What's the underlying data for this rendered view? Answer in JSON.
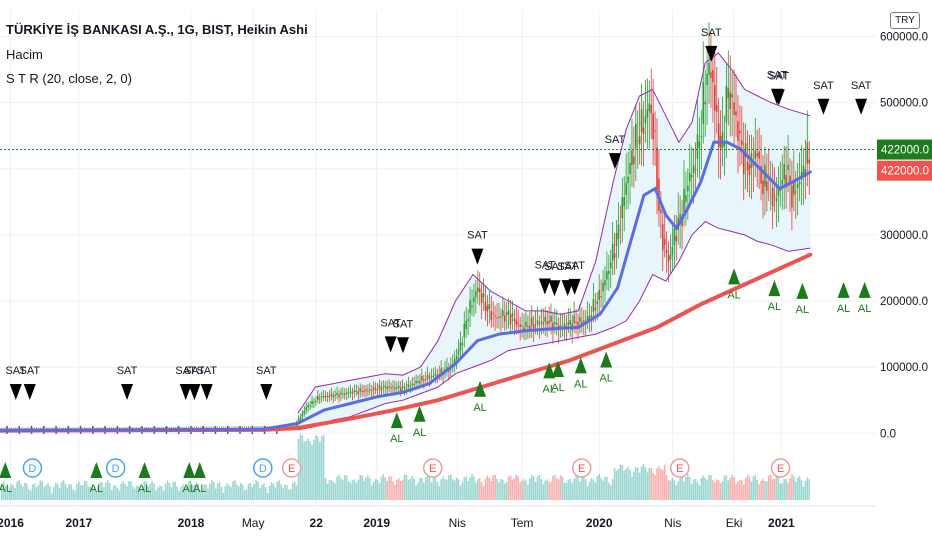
{
  "header": {
    "title": "TÜRKİYE İŞ BANKASI A.Ş., 1G, BIST, Heikin Ashi",
    "volume_label": "Hacim",
    "indicator_label": "S T R  (20, close, 2, 0)",
    "currency": "TRY"
  },
  "colors": {
    "bull": "#26a69a",
    "bull_strong": "#2e9c2e",
    "bear": "#e53935",
    "ma_blue": "#5b6ee1",
    "ma_red": "#ef5350",
    "band": "#9c27b0",
    "band_fill": "#e8f6fb",
    "sell": "#000000",
    "buy": "#1b7a1b",
    "price_green": "#1e7b1e",
    "price_red": "#ef5350"
  },
  "chart_data": {
    "type": "candlestick",
    "y_ticks": [
      "600000.0",
      "500000.0",
      "400000.0",
      "300000.0",
      "200000.0",
      "100000.0",
      "0.0"
    ],
    "y_tick_values": [
      600000,
      500000,
      400000,
      300000,
      200000,
      100000,
      0
    ],
    "ylim": [
      -110000,
      640000
    ],
    "x_range": [
      0,
      1000
    ],
    "x_ticks": [
      {
        "label": "2016",
        "x": 12
      },
      {
        "label": "2017",
        "x": 90
      },
      {
        "label": "2018",
        "x": 218
      },
      {
        "label": "May",
        "x": 289
      },
      {
        "label": "22",
        "x": 361
      },
      {
        "label": "2019",
        "x": 430
      },
      {
        "label": "Nis",
        "x": 522
      },
      {
        "label": "Tem",
        "x": 596
      },
      {
        "label": "2020",
        "x": 684
      },
      {
        "label": "Nis",
        "x": 768
      },
      {
        "label": "Eki",
        "x": 838
      },
      {
        "label": "2021",
        "x": 892
      }
    ],
    "last_price_labels": {
      "upper": "422000.0",
      "lower": "422000.0"
    },
    "last_price_values": {
      "upper": 429000,
      "lower": 397000
    },
    "price_points": [
      [
        0,
        5000
      ],
      [
        100,
        5000
      ],
      [
        200,
        6000
      ],
      [
        300,
        7000
      ],
      [
        335,
        8000
      ],
      [
        350,
        40000
      ],
      [
        365,
        55000
      ],
      [
        385,
        58000
      ],
      [
        400,
        62000
      ],
      [
        420,
        65000
      ],
      [
        440,
        70000
      ],
      [
        460,
        68000
      ],
      [
        480,
        80000
      ],
      [
        500,
        90000
      ],
      [
        515,
        100000
      ],
      [
        525,
        130000
      ],
      [
        535,
        185000
      ],
      [
        545,
        220000
      ],
      [
        555,
        190000
      ],
      [
        565,
        175000
      ],
      [
        580,
        180000
      ],
      [
        595,
        160000
      ],
      [
        610,
        165000
      ],
      [
        625,
        170000
      ],
      [
        640,
        160000
      ],
      [
        655,
        168000
      ],
      [
        670,
        170000
      ],
      [
        685,
        210000
      ],
      [
        695,
        250000
      ],
      [
        705,
        300000
      ],
      [
        715,
        380000
      ],
      [
        725,
        440000
      ],
      [
        735,
        470000
      ],
      [
        742,
        500000
      ],
      [
        748,
        430000
      ],
      [
        752,
        340000
      ],
      [
        758,
        280000
      ],
      [
        764,
        260000
      ],
      [
        770,
        300000
      ],
      [
        778,
        330000
      ],
      [
        785,
        380000
      ],
      [
        792,
        400000
      ],
      [
        800,
        460000
      ],
      [
        806,
        540000
      ],
      [
        812,
        550000
      ],
      [
        818,
        470000
      ],
      [
        824,
        420000
      ],
      [
        830,
        520000
      ],
      [
        836,
        500000
      ],
      [
        842,
        460000
      ],
      [
        848,
        420000
      ],
      [
        856,
        400000
      ],
      [
        864,
        430000
      ],
      [
        870,
        370000
      ],
      [
        876,
        390000
      ],
      [
        884,
        350000
      ],
      [
        892,
        380000
      ],
      [
        898,
        400000
      ],
      [
        904,
        360000
      ],
      [
        912,
        380000
      ],
      [
        920,
        410000
      ],
      [
        925,
        422000
      ]
    ],
    "ma_blue_points": [
      [
        0,
        4000
      ],
      [
        300,
        6000
      ],
      [
        340,
        15000
      ],
      [
        370,
        35000
      ],
      [
        400,
        45000
      ],
      [
        430,
        55000
      ],
      [
        460,
        62000
      ],
      [
        490,
        75000
      ],
      [
        520,
        105000
      ],
      [
        545,
        140000
      ],
      [
        570,
        150000
      ],
      [
        600,
        155000
      ],
      [
        630,
        158000
      ],
      [
        660,
        160000
      ],
      [
        685,
        180000
      ],
      [
        705,
        220000
      ],
      [
        720,
        290000
      ],
      [
        735,
        360000
      ],
      [
        748,
        370000
      ],
      [
        760,
        330000
      ],
      [
        772,
        310000
      ],
      [
        785,
        340000
      ],
      [
        800,
        380000
      ],
      [
        815,
        440000
      ],
      [
        830,
        440000
      ],
      [
        845,
        430000
      ],
      [
        860,
        410000
      ],
      [
        875,
        390000
      ],
      [
        890,
        370000
      ],
      [
        905,
        380000
      ],
      [
        925,
        395000
      ]
    ],
    "ma_red_points": [
      [
        0,
        4000
      ],
      [
        300,
        5000
      ],
      [
        340,
        8000
      ],
      [
        400,
        22000
      ],
      [
        450,
        35000
      ],
      [
        500,
        50000
      ],
      [
        550,
        70000
      ],
      [
        600,
        90000
      ],
      [
        650,
        110000
      ],
      [
        700,
        135000
      ],
      [
        750,
        160000
      ],
      [
        800,
        195000
      ],
      [
        850,
        225000
      ],
      [
        900,
        255000
      ],
      [
        925,
        270000
      ]
    ],
    "band_upper": [
      [
        340,
        30000
      ],
      [
        360,
        70000
      ],
      [
        380,
        75000
      ],
      [
        400,
        80000
      ],
      [
        420,
        85000
      ],
      [
        440,
        90000
      ],
      [
        460,
        88000
      ],
      [
        480,
        100000
      ],
      [
        500,
        140000
      ],
      [
        520,
        200000
      ],
      [
        540,
        240000
      ],
      [
        560,
        215000
      ],
      [
        580,
        200000
      ],
      [
        600,
        185000
      ],
      [
        620,
        185000
      ],
      [
        640,
        180000
      ],
      [
        660,
        185000
      ],
      [
        680,
        260000
      ],
      [
        700,
        380000
      ],
      [
        715,
        460000
      ],
      [
        730,
        510000
      ],
      [
        745,
        520000
      ],
      [
        760,
        480000
      ],
      [
        775,
        440000
      ],
      [
        790,
        470000
      ],
      [
        805,
        560000
      ],
      [
        820,
        575000
      ],
      [
        835,
        550000
      ],
      [
        850,
        520000
      ],
      [
        865,
        510000
      ],
      [
        880,
        500000
      ],
      [
        900,
        490000
      ],
      [
        925,
        480000
      ]
    ],
    "band_lower": [
      [
        340,
        5000
      ],
      [
        360,
        10000
      ],
      [
        380,
        20000
      ],
      [
        400,
        25000
      ],
      [
        420,
        35000
      ],
      [
        440,
        45000
      ],
      [
        460,
        50000
      ],
      [
        480,
        60000
      ],
      [
        500,
        70000
      ],
      [
        520,
        90000
      ],
      [
        540,
        100000
      ],
      [
        560,
        110000
      ],
      [
        580,
        125000
      ],
      [
        600,
        130000
      ],
      [
        620,
        135000
      ],
      [
        640,
        140000
      ],
      [
        660,
        145000
      ],
      [
        680,
        150000
      ],
      [
        700,
        160000
      ],
      [
        715,
        170000
      ],
      [
        730,
        200000
      ],
      [
        745,
        240000
      ],
      [
        760,
        230000
      ],
      [
        775,
        260000
      ],
      [
        790,
        300000
      ],
      [
        805,
        320000
      ],
      [
        820,
        310000
      ],
      [
        835,
        305000
      ],
      [
        850,
        300000
      ],
      [
        865,
        290000
      ],
      [
        880,
        285000
      ],
      [
        900,
        275000
      ],
      [
        925,
        280000
      ]
    ],
    "sell_signals": [
      {
        "x": 18,
        "label": "SAT"
      },
      {
        "x": 34,
        "label": "SAT"
      },
      {
        "x": 145,
        "label": "SAT"
      },
      {
        "x": 212,
        "label": "SAT"
      },
      {
        "x": 222,
        "label": "SAT"
      },
      {
        "x": 236,
        "label": "SAT"
      },
      {
        "x": 304,
        "label": "SAT"
      },
      {
        "x": 446,
        "label": "SAT"
      },
      {
        "x": 460,
        "label": "SAT"
      },
      {
        "x": 545,
        "label": "SAT"
      },
      {
        "x": 622,
        "label": "SAT"
      },
      {
        "x": 633,
        "label": "SAT"
      },
      {
        "x": 648,
        "label": "SAT"
      },
      {
        "x": 656,
        "label": "SAT"
      },
      {
        "x": 702,
        "label": "SAT"
      },
      {
        "x": 812,
        "label": "SAT"
      },
      {
        "x": 887,
        "label": "SAT"
      },
      {
        "x": 889,
        "label": "SAT"
      },
      {
        "x": 940,
        "label": "SAT"
      },
      {
        "x": 983,
        "label": "SAT"
      }
    ],
    "buy_signals": [
      {
        "x": 6,
        "label": "AL"
      },
      {
        "x": 110,
        "label": "AL"
      },
      {
        "x": 165,
        "label": "AL"
      },
      {
        "x": 216,
        "label": "AL"
      },
      {
        "x": 228,
        "label": "AL"
      },
      {
        "x": 453,
        "label": "AL"
      },
      {
        "x": 479,
        "label": "AL"
      },
      {
        "x": 548,
        "label": "AL"
      },
      {
        "x": 627,
        "label": "AL"
      },
      {
        "x": 637,
        "label": "AL"
      },
      {
        "x": 663,
        "label": "AL"
      },
      {
        "x": 692,
        "label": "AL"
      },
      {
        "x": 838,
        "label": "AL"
      },
      {
        "x": 884,
        "label": "AL"
      },
      {
        "x": 916,
        "label": "AL"
      },
      {
        "x": 963,
        "label": "AL"
      },
      {
        "x": 987,
        "label": "AL"
      }
    ],
    "events": [
      {
        "x": 37,
        "label": "D",
        "kind": "dividend"
      },
      {
        "x": 132,
        "label": "D",
        "kind": "dividend"
      },
      {
        "x": 300,
        "label": "D",
        "kind": "dividend"
      },
      {
        "x": 333,
        "label": "E",
        "kind": "earnings"
      },
      {
        "x": 494,
        "label": "E",
        "kind": "earnings"
      },
      {
        "x": 664,
        "label": "E",
        "kind": "earnings"
      },
      {
        "x": 776,
        "label": "E",
        "kind": "earnings"
      },
      {
        "x": 891,
        "label": "E",
        "kind": "earnings"
      }
    ]
  }
}
